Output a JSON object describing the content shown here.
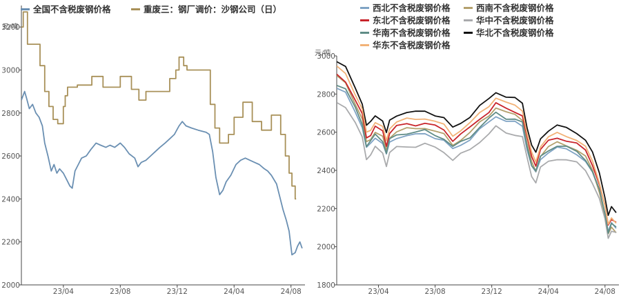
{
  "chart_data": [
    {
      "type": "line",
      "title": "",
      "ylabel": "元/吨",
      "ylim": [
        2000,
        3300
      ],
      "yticks": [
        2000,
        2200,
        2400,
        2600,
        2800,
        3000,
        3200
      ],
      "xticks": [
        "23/04",
        "23/08",
        "23/12",
        "24/04",
        "24/08"
      ],
      "x_range": [
        "2023-01-01",
        "2024-08-31"
      ],
      "grid": false,
      "legend_position": "top",
      "series": [
        {
          "name": "全国不含税废钢价格",
          "color": "#6a8fb2",
          "step": false,
          "points": [
            [
              "2023-01-01",
              2860
            ],
            [
              "2023-01-08",
              2900
            ],
            [
              "2023-01-12",
              2870
            ],
            [
              "2023-01-18",
              2820
            ],
            [
              "2023-01-25",
              2840
            ],
            [
              "2023-02-01",
              2800
            ],
            [
              "2023-02-08",
              2780
            ],
            [
              "2023-02-15",
              2740
            ],
            [
              "2023-02-20",
              2660
            ],
            [
              "2023-02-27",
              2600
            ],
            [
              "2023-03-06",
              2530
            ],
            [
              "2023-03-12",
              2560
            ],
            [
              "2023-03-18",
              2520
            ],
            [
              "2023-03-24",
              2540
            ],
            [
              "2023-04-01",
              2520
            ],
            [
              "2023-04-08",
              2490
            ],
            [
              "2023-04-15",
              2460
            ],
            [
              "2023-04-20",
              2450
            ],
            [
              "2023-04-26",
              2530
            ],
            [
              "2023-05-03",
              2560
            ],
            [
              "2023-05-10",
              2590
            ],
            [
              "2023-05-20",
              2600
            ],
            [
              "2023-05-30",
              2630
            ],
            [
              "2023-06-10",
              2660
            ],
            [
              "2023-06-20",
              2650
            ],
            [
              "2023-07-01",
              2640
            ],
            [
              "2023-07-10",
              2650
            ],
            [
              "2023-07-20",
              2640
            ],
            [
              "2023-08-01",
              2660
            ],
            [
              "2023-08-10",
              2640
            ],
            [
              "2023-08-20",
              2610
            ],
            [
              "2023-09-01",
              2590
            ],
            [
              "2023-09-08",
              2550
            ],
            [
              "2023-09-15",
              2570
            ],
            [
              "2023-09-25",
              2580
            ],
            [
              "2023-10-05",
              2600
            ],
            [
              "2023-10-15",
              2620
            ],
            [
              "2023-10-25",
              2640
            ],
            [
              "2023-11-05",
              2660
            ],
            [
              "2023-11-15",
              2680
            ],
            [
              "2023-11-25",
              2700
            ],
            [
              "2023-12-05",
              2740
            ],
            [
              "2023-12-12",
              2760
            ],
            [
              "2023-12-20",
              2740
            ],
            [
              "2024-01-01",
              2730
            ],
            [
              "2024-01-15",
              2720
            ],
            [
              "2024-02-01",
              2710
            ],
            [
              "2024-02-08",
              2700
            ],
            [
              "2024-02-15",
              2620
            ],
            [
              "2024-02-22",
              2500
            ],
            [
              "2024-03-01",
              2420
            ],
            [
              "2024-03-08",
              2440
            ],
            [
              "2024-03-15",
              2480
            ],
            [
              "2024-03-25",
              2510
            ],
            [
              "2024-04-05",
              2560
            ],
            [
              "2024-04-15",
              2580
            ],
            [
              "2024-04-25",
              2590
            ],
            [
              "2024-05-05",
              2580
            ],
            [
              "2024-05-15",
              2570
            ],
            [
              "2024-05-25",
              2560
            ],
            [
              "2024-06-05",
              2540
            ],
            [
              "2024-06-12",
              2530
            ],
            [
              "2024-06-20",
              2510
            ],
            [
              "2024-07-01",
              2470
            ],
            [
              "2024-07-08",
              2410
            ],
            [
              "2024-07-15",
              2350
            ],
            [
              "2024-07-22",
              2300
            ],
            [
              "2024-07-28",
              2250
            ],
            [
              "2024-08-03",
              2140
            ],
            [
              "2024-08-10",
              2150
            ],
            [
              "2024-08-15",
              2180
            ],
            [
              "2024-08-20",
              2200
            ],
            [
              "2024-08-25",
              2170
            ]
          ]
        },
        {
          "name": "重废三：钢厂调价：沙钢公司（日）",
          "color": "#a89058",
          "step": true,
          "points": [
            [
              "2023-01-01",
              3200
            ],
            [
              "2023-01-05",
              3270
            ],
            [
              "2023-01-14",
              3120
            ],
            [
              "2023-02-10",
              3020
            ],
            [
              "2023-02-20",
              2900
            ],
            [
              "2023-03-01",
              2830
            ],
            [
              "2023-03-10",
              2770
            ],
            [
              "2023-03-20",
              2750
            ],
            [
              "2023-04-01",
              2830
            ],
            [
              "2023-04-05",
              2880
            ],
            [
              "2023-04-10",
              2920
            ],
            [
              "2023-05-01",
              2930
            ],
            [
              "2023-06-01",
              2970
            ],
            [
              "2023-06-25",
              2920
            ],
            [
              "2023-07-10",
              2920
            ],
            [
              "2023-08-01",
              2970
            ],
            [
              "2023-08-25",
              2910
            ],
            [
              "2023-09-10",
              2860
            ],
            [
              "2023-09-25",
              2900
            ],
            [
              "2023-10-15",
              2900
            ],
            [
              "2023-11-01",
              2900
            ],
            [
              "2023-11-15",
              2960
            ],
            [
              "2023-11-28",
              3000
            ],
            [
              "2023-12-05",
              3060
            ],
            [
              "2023-12-15",
              3020
            ],
            [
              "2023-12-22",
              3000
            ],
            [
              "2024-02-01",
              3000
            ],
            [
              "2024-02-10",
              2840
            ],
            [
              "2024-02-20",
              2730
            ],
            [
              "2024-03-01",
              2660
            ],
            [
              "2024-03-20",
              2700
            ],
            [
              "2024-04-01",
              2780
            ],
            [
              "2024-04-20",
              2850
            ],
            [
              "2024-05-10",
              2760
            ],
            [
              "2024-05-30",
              2720
            ],
            [
              "2024-06-20",
              2790
            ],
            [
              "2024-07-10",
              2700
            ],
            [
              "2024-07-20",
              2600
            ],
            [
              "2024-07-28",
              2520
            ],
            [
              "2024-08-03",
              2460
            ],
            [
              "2024-08-10",
              2400
            ],
            [
              "2024-08-12",
              2400
            ]
          ]
        }
      ]
    },
    {
      "type": "line",
      "title": "",
      "ylabel": "元/吨",
      "ylim": [
        1800,
        3000
      ],
      "yticks": [
        1800,
        2000,
        2200,
        2400,
        2600,
        2800,
        3000
      ],
      "xticks": [
        "23/04",
        "23/08",
        "23/12",
        "24/04",
        "24/08"
      ],
      "x_range": [
        "2023-01-01",
        "2024-08-31"
      ],
      "grid": false,
      "legend_position": "top",
      "base_curve": [
        [
          "2023-01-01",
          2890
        ],
        [
          "2023-01-20",
          2860
        ],
        [
          "2023-02-10",
          2760
        ],
        [
          "2023-02-25",
          2680
        ],
        [
          "2023-03-06",
          2560
        ],
        [
          "2023-03-15",
          2580
        ],
        [
          "2023-03-25",
          2620
        ],
        [
          "2023-04-10",
          2590
        ],
        [
          "2023-04-18",
          2520
        ],
        [
          "2023-04-25",
          2590
        ],
        [
          "2023-05-10",
          2620
        ],
        [
          "2023-06-01",
          2630
        ],
        [
          "2023-06-20",
          2630
        ],
        [
          "2023-07-10",
          2640
        ],
        [
          "2023-08-01",
          2620
        ],
        [
          "2023-08-20",
          2600
        ],
        [
          "2023-09-08",
          2550
        ],
        [
          "2023-09-25",
          2580
        ],
        [
          "2023-10-15",
          2610
        ],
        [
          "2023-11-05",
          2660
        ],
        [
          "2023-11-25",
          2700
        ],
        [
          "2023-12-10",
          2740
        ],
        [
          "2024-01-01",
          2710
        ],
        [
          "2024-01-20",
          2700
        ],
        [
          "2024-02-05",
          2680
        ],
        [
          "2024-02-15",
          2560
        ],
        [
          "2024-02-25",
          2460
        ],
        [
          "2024-03-05",
          2420
        ],
        [
          "2024-03-15",
          2500
        ],
        [
          "2024-04-01",
          2540
        ],
        [
          "2024-04-20",
          2560
        ],
        [
          "2024-05-10",
          2550
        ],
        [
          "2024-06-01",
          2530
        ],
        [
          "2024-06-20",
          2490
        ],
        [
          "2024-07-05",
          2420
        ],
        [
          "2024-07-20",
          2320
        ],
        [
          "2024-08-01",
          2200
        ],
        [
          "2024-08-08",
          2100
        ],
        [
          "2024-08-15",
          2140
        ],
        [
          "2024-08-25",
          2120
        ]
      ],
      "series": [
        {
          "name": "西北不含税废钢价格",
          "color": "#7fa3c4",
          "offset": -40,
          "amp": 0.95
        },
        {
          "name": "西南不含税废钢价格",
          "color": "#b3a06c",
          "offset": -20,
          "amp": 1.05
        },
        {
          "name": "东北不含税废钢价格",
          "color": "#c8242b",
          "offset": 10,
          "amp": 1.0
        },
        {
          "name": "华中不含税废钢价格",
          "color": "#a9aaac",
          "offset": -90,
          "amp": 0.9
        },
        {
          "name": "华南不含税废钢价格",
          "color": "#5f8c86",
          "offset": -30,
          "amp": 0.98
        },
        {
          "name": "华北不含税废钢价格",
          "color": "#111111",
          "offset": 70,
          "amp": 1.02
        },
        {
          "name": "华东不含税废钢价格",
          "color": "#f2b277",
          "offset": 30,
          "amp": 1.05
        }
      ]
    }
  ]
}
